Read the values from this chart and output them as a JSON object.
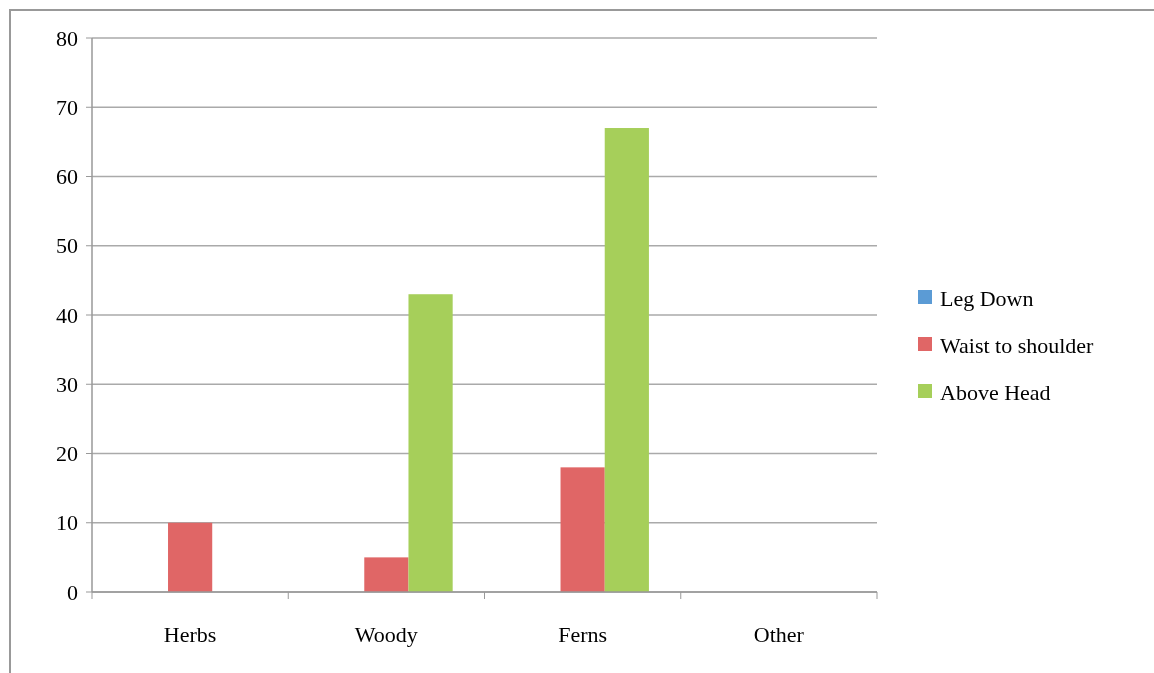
{
  "chart_data": {
    "type": "bar",
    "categories": [
      "Herbs",
      "Woody",
      "Ferns",
      "Other"
    ],
    "series": [
      {
        "name": "Leg Down",
        "color": "#5b9bd5",
        "values": [
          0,
          0,
          0,
          0
        ]
      },
      {
        "name": "Waist to shoulder",
        "color": "#e06666",
        "values": [
          10,
          5,
          18,
          0
        ]
      },
      {
        "name": "Above Head",
        "color": "#a6cf5a",
        "values": [
          0,
          43,
          67,
          0
        ]
      }
    ],
    "ylim": [
      0,
      80
    ],
    "yticks": [
      0,
      10,
      20,
      30,
      40,
      50,
      60,
      70,
      80
    ],
    "grid": "y",
    "legend": "right"
  }
}
